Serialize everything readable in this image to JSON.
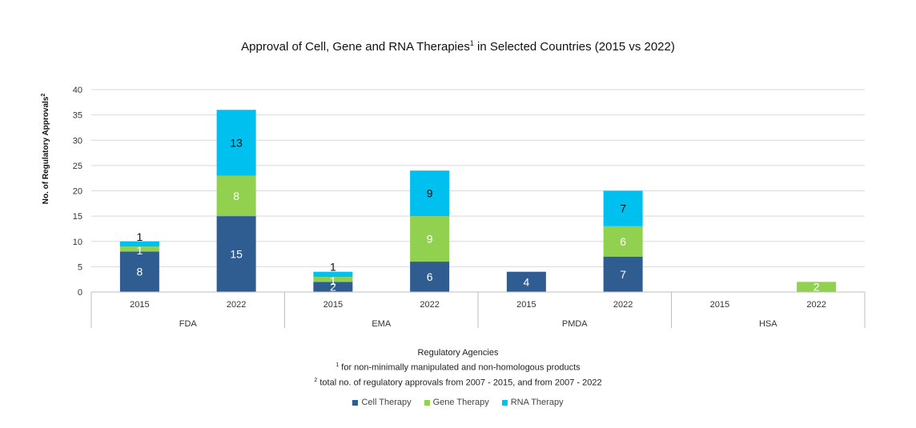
{
  "chart_data": {
    "type": "bar",
    "stacked": true,
    "title": "Approval of Cell, Gene and RNA Therapies",
    "title_sup": "1",
    "title_suffix": " in Selected Countries (2015 vs 2022)",
    "ylabel": "No. of Regulatory Approvals",
    "ylabel_sup": "2",
    "xlabel": "Regulatory Agencies",
    "ylim": [
      0,
      40
    ],
    "yticks": [
      0,
      5,
      10,
      15,
      20,
      25,
      30,
      35,
      40
    ],
    "grid": true,
    "groups": [
      {
        "name": "FDA",
        "categories": [
          "2015",
          "2022"
        ]
      },
      {
        "name": "EMA",
        "categories": [
          "2015",
          "2022"
        ]
      },
      {
        "name": "PMDA",
        "categories": [
          "2015",
          "2022"
        ]
      },
      {
        "name": "HSA",
        "categories": [
          "2015",
          "2022"
        ]
      }
    ],
    "categories": [
      "FDA 2015",
      "FDA 2022",
      "EMA 2015",
      "EMA 2022",
      "PMDA 2015",
      "PMDA 2022",
      "HSA 2015",
      "HSA 2022"
    ],
    "series": [
      {
        "name": "Cell Therapy",
        "color": "#2f5d91",
        "values": [
          8,
          15,
          2,
          6,
          4,
          7,
          0,
          0
        ]
      },
      {
        "name": "Gene Therapy",
        "color": "#92d050",
        "values": [
          1,
          8,
          1,
          9,
          0,
          6,
          0,
          2
        ]
      },
      {
        "name": "RNA Therapy",
        "color": "#00c0f0",
        "values": [
          1,
          13,
          1,
          9,
          0,
          7,
          0,
          0
        ]
      }
    ],
    "legend_position": "bottom",
    "footnotes": [
      {
        "sup": "1",
        "text": " for non-minimally manipulated and non-homologous products"
      },
      {
        "sup": "2",
        "text": " total no. of regulatory approvals from 2007 - 2015, and from 2007 - 2022"
      }
    ]
  }
}
